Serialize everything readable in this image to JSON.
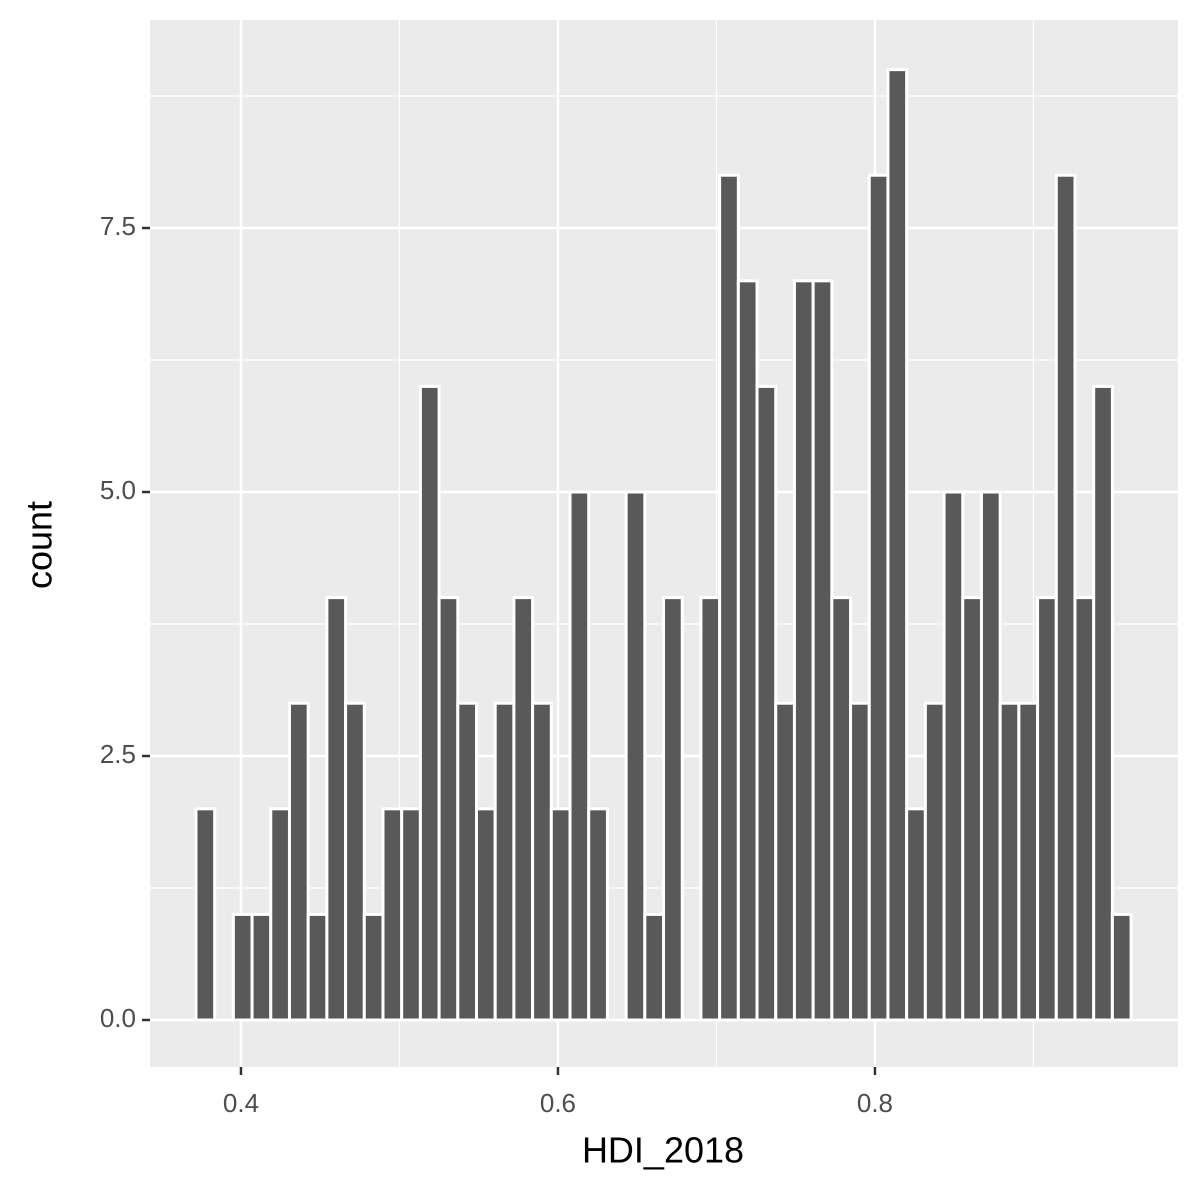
{
  "chart_data": {
    "type": "histogram",
    "x_label": "HDI_2018",
    "y_label": "count",
    "bins": [
      0.3716,
      0.3834,
      0.3952,
      0.407,
      0.4188,
      0.4306,
      0.4424,
      0.4542,
      0.466,
      0.4778,
      0.4896,
      0.5014,
      0.5132,
      0.525,
      0.5368,
      0.5486,
      0.5604,
      0.5722,
      0.584,
      0.5958,
      0.6076,
      0.6194,
      0.6312,
      0.643,
      0.6548,
      0.6666,
      0.6784,
      0.6902,
      0.702,
      0.7138,
      0.7256,
      0.7374,
      0.7492,
      0.761,
      0.7728,
      0.7846,
      0.7964,
      0.8082,
      0.82,
      0.8318,
      0.8436,
      0.8554,
      0.8672,
      0.879,
      0.8908,
      0.9026,
      0.9144,
      0.9262,
      0.938,
      0.9498,
      0.9616
    ],
    "values": [
      2,
      0,
      1,
      1,
      2,
      3,
      1,
      4,
      3,
      1,
      2,
      2,
      6,
      4,
      3,
      2,
      3,
      4,
      3,
      2,
      5,
      2,
      0,
      5,
      1,
      4,
      0,
      4,
      8,
      7,
      6,
      3,
      7,
      7,
      4,
      3,
      8,
      9,
      2,
      3,
      5,
      4,
      5,
      3,
      3,
      4,
      8,
      4,
      6,
      1
    ],
    "color": "#595959",
    "xlim": [
      0.3426,
      0.9912
    ],
    "ylim": [
      -0.445,
      9.47
    ],
    "xticks": [
      0.4,
      0.6,
      0.8
    ],
    "yticks": [
      {
        "value": 0,
        "label": "0.0"
      },
      2.5,
      {
        "value": 5,
        "label": "5.0"
      },
      7.5
    ],
    "x_minor_ticks": [
      0.5,
      0.7,
      0.9
    ],
    "y_minor_ticks": [
      1.25,
      3.75,
      6.25,
      8.75
    ],
    "grid": true
  }
}
